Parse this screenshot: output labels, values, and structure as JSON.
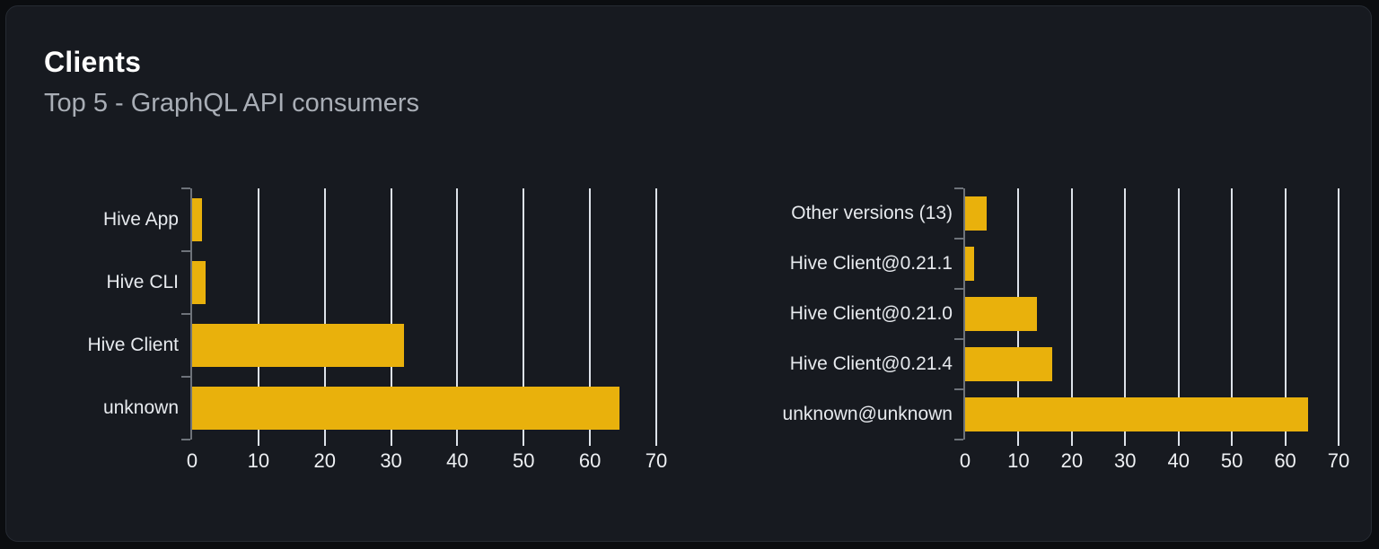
{
  "card": {
    "title": "Clients",
    "subtitle": "Top 5 - GraphQL API consumers"
  },
  "colors": {
    "bar": "#e9b10c",
    "gridline": "#dde2e9",
    "axis": "#6e737a",
    "card_background": "#171a20",
    "page_background": "#0b0d10",
    "title_text": "#ffffff",
    "subtitle_text": "#a9aeb6"
  },
  "chart_data": [
    {
      "type": "bar",
      "orientation": "horizontal",
      "name": "clients-by-name",
      "title": "",
      "categories": [
        "Hive App",
        "Hive CLI",
        "Hive Client",
        "unknown"
      ],
      "values": [
        1.5,
        2,
        32,
        64.5
      ],
      "xticks": [
        0,
        10,
        20,
        30,
        40,
        50,
        60,
        70
      ],
      "xlim": [
        0,
        70
      ],
      "xlabel": "",
      "ylabel": "",
      "grid": true,
      "legend": false
    },
    {
      "type": "bar",
      "orientation": "horizontal",
      "name": "clients-by-version",
      "title": "",
      "categories": [
        "Other versions (13)",
        "Hive Client@0.21.1",
        "Hive Client@0.21.0",
        "Hive Client@0.21.4",
        "unknown@unknown"
      ],
      "values": [
        4,
        1.6,
        13.5,
        16.3,
        64.3
      ],
      "xticks": [
        0,
        10,
        20,
        30,
        40,
        50,
        60,
        70
      ],
      "xlim": [
        0,
        70
      ],
      "xlabel": "",
      "ylabel": "",
      "grid": true,
      "legend": false
    }
  ]
}
